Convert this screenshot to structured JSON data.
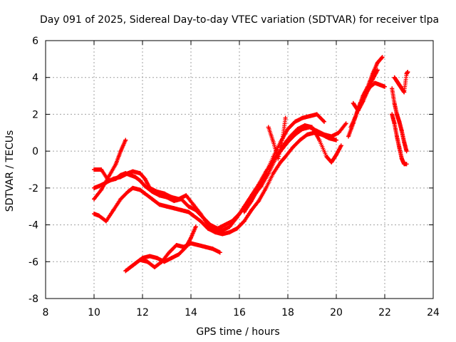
{
  "chart_data": {
    "type": "scatter",
    "title": "Day 091 of 2025, Sidereal Day-to-day VTEC variation (SDTVAR) for receiver tlpa",
    "xlabel": "GPS time / hours",
    "ylabel": "SDTVAR / TECUs",
    "xlim": [
      8,
      24
    ],
    "ylim": [
      -8,
      6
    ],
    "xticks": [
      8,
      10,
      12,
      14,
      16,
      18,
      20,
      22,
      24
    ],
    "yticks": [
      -8,
      -6,
      -4,
      -2,
      0,
      2,
      4,
      6
    ],
    "xtick_labels": [
      "8",
      "10",
      "12",
      "14",
      "16",
      "18",
      "20",
      "22",
      "24"
    ],
    "ytick_labels": [
      "-8",
      "-6",
      "-4",
      "-2",
      "0",
      "2",
      "4",
      "6"
    ],
    "grid": true,
    "marker": "+",
    "color": "#ff0000",
    "series": [
      {
        "name": "track-1",
        "x": [
          10.0,
          10.2,
          10.5,
          10.8,
          11.1,
          11.4,
          11.6,
          11.9,
          12.1,
          12.4,
          12.7,
          13.0,
          13.3,
          13.6,
          13.9,
          14.1,
          14.4,
          14.7,
          15.0,
          15.3,
          15.6,
          15.9,
          16.2,
          16.5,
          16.8,
          17.1,
          17.4,
          17.7,
          17.9,
          18.2,
          18.5,
          18.8,
          19.1,
          19.4,
          19.7,
          20.0
        ],
        "y": [
          -3.4,
          -3.5,
          -3.8,
          -3.2,
          -2.6,
          -2.2,
          -2.0,
          -2.1,
          -2.3,
          -2.6,
          -2.9,
          -3.0,
          -3.1,
          -3.2,
          -3.3,
          -3.5,
          -3.8,
          -4.2,
          -4.4,
          -4.5,
          -4.4,
          -4.2,
          -3.8,
          -3.2,
          -2.7,
          -2.0,
          -1.2,
          -0.6,
          -0.3,
          0.2,
          0.6,
          0.9,
          1.0,
          0.9,
          0.7,
          0.6
        ]
      },
      {
        "name": "track-2",
        "x": [
          10.0,
          10.2,
          10.5,
          10.8,
          11.1,
          11.4,
          11.6,
          11.9,
          12.1,
          12.3,
          12.6,
          12.9,
          13.2,
          13.5,
          13.8,
          14.1,
          14.4,
          14.7,
          15.0,
          15.3,
          15.6,
          15.9,
          16.2,
          16.5,
          16.8,
          17.1,
          17.4,
          17.7,
          18.0,
          18.3,
          18.6,
          18.9,
          19.2,
          19.5,
          19.8,
          20.1,
          20.4
        ],
        "y": [
          -2.0,
          -1.9,
          -1.7,
          -1.5,
          -1.4,
          -1.2,
          -1.1,
          -1.2,
          -1.5,
          -2.0,
          -2.2,
          -2.3,
          -2.5,
          -2.6,
          -2.4,
          -2.9,
          -3.4,
          -4.0,
          -4.3,
          -4.3,
          -4.1,
          -3.6,
          -3.0,
          -2.4,
          -1.8,
          -1.1,
          -0.5,
          0.0,
          0.5,
          0.9,
          1.2,
          1.3,
          1.1,
          0.9,
          0.8,
          1.0,
          1.5
        ]
      },
      {
        "name": "track-3",
        "x": [
          10.0,
          10.3,
          10.6,
          10.9,
          11.1,
          11.3,
          11.5,
          11.7,
          11.9,
          12.1,
          12.4,
          12.7,
          13.0,
          13.3,
          13.6,
          13.9,
          14.2,
          14.5,
          14.8,
          15.1,
          15.4,
          15.7,
          16.0,
          16.3,
          16.6,
          16.9,
          17.2,
          17.5,
          17.8,
          18.1,
          18.4,
          18.7,
          19.0,
          19.3,
          19.6,
          19.8,
          20.0,
          20.2
        ],
        "y": [
          -1.0,
          -1.0,
          -1.6,
          -1.5,
          -1.3,
          -1.2,
          -1.3,
          -1.4,
          -1.6,
          -1.9,
          -2.2,
          -2.4,
          -2.5,
          -2.7,
          -2.6,
          -3.0,
          -3.2,
          -3.6,
          -4.0,
          -4.2,
          -4.0,
          -3.8,
          -3.4,
          -2.9,
          -2.4,
          -1.9,
          -1.2,
          -0.4,
          0.3,
          0.8,
          1.2,
          1.4,
          1.3,
          0.6,
          -0.3,
          -0.6,
          -0.2,
          0.3
        ]
      },
      {
        "name": "track-4",
        "x": [
          10.0,
          10.3,
          10.6,
          10.9,
          11.1,
          11.3
        ],
        "y": [
          -2.6,
          -2.1,
          -1.4,
          -0.7,
          0.0,
          0.6
        ]
      },
      {
        "name": "track-5",
        "x": [
          11.3,
          11.6,
          11.9,
          12.2,
          12.5,
          12.8,
          13.1,
          13.4,
          13.7,
          14.0,
          14.3,
          14.6,
          14.9,
          15.2
        ],
        "y": [
          -6.5,
          -6.2,
          -5.9,
          -6.0,
          -6.3,
          -6.0,
          -5.5,
          -5.1,
          -5.2,
          -5.0,
          -5.1,
          -5.2,
          -5.3,
          -5.5
        ]
      },
      {
        "name": "track-6",
        "x": [
          11.4,
          11.7,
          12.0,
          12.3,
          12.6,
          12.9,
          13.2,
          13.5,
          13.8,
          14.0,
          14.2
        ],
        "y": [
          -6.4,
          -6.1,
          -5.8,
          -5.7,
          -5.8,
          -6.0,
          -5.8,
          -5.6,
          -5.2,
          -4.7,
          -4.1
        ]
      },
      {
        "name": "track-7",
        "x": [
          16.2,
          16.5,
          16.8,
          17.1,
          17.4,
          17.7,
          18.0,
          18.3,
          18.6,
          18.9,
          19.2,
          19.5
        ],
        "y": [
          -3.3,
          -2.7,
          -2.0,
          -1.2,
          -0.3,
          0.5,
          1.2,
          1.6,
          1.8,
          1.9,
          2.0,
          1.6
        ]
      },
      {
        "name": "track-8",
        "x": [
          17.2,
          17.4,
          17.6,
          17.8,
          17.9
        ],
        "y": [
          1.3,
          0.5,
          -0.4,
          0.8,
          1.8
        ]
      },
      {
        "name": "track-9",
        "x": [
          20.5,
          20.7,
          20.9,
          21.1,
          21.3,
          21.5,
          21.7,
          21.9
        ],
        "y": [
          0.8,
          1.5,
          2.3,
          3.0,
          3.5,
          4.2,
          4.8,
          5.1
        ]
      },
      {
        "name": "track-10",
        "x": [
          20.6,
          20.8,
          21.0,
          21.2,
          21.4,
          21.6,
          21.8,
          22.0
        ],
        "y": [
          1.3,
          1.9,
          2.6,
          3.1,
          3.5,
          3.7,
          3.6,
          3.5
        ]
      },
      {
        "name": "track-11",
        "x": [
          20.7,
          20.9,
          21.1,
          21.3,
          21.5,
          21.7
        ],
        "y": [
          2.6,
          2.2,
          2.7,
          3.3,
          3.9,
          4.4
        ]
      },
      {
        "name": "track-12",
        "x": [
          22.3,
          22.4,
          22.5,
          22.6,
          22.7,
          22.8,
          22.9
        ],
        "y": [
          3.4,
          2.6,
          2.0,
          1.6,
          1.1,
          0.5,
          0.0
        ]
      },
      {
        "name": "track-13",
        "x": [
          22.3,
          22.4,
          22.5,
          22.6,
          22.7,
          22.8,
          22.9
        ],
        "y": [
          2.0,
          1.5,
          0.8,
          0.2,
          -0.4,
          -0.7,
          -0.7
        ]
      },
      {
        "name": "track-14",
        "x": [
          22.4,
          22.5,
          22.6,
          22.7,
          22.8,
          22.9,
          22.95
        ],
        "y": [
          4.0,
          3.8,
          3.6,
          3.4,
          3.2,
          4.2,
          4.3
        ]
      }
    ]
  }
}
